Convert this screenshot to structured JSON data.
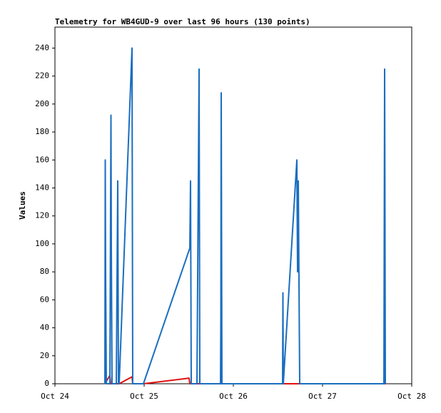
{
  "chart_data": {
    "type": "line",
    "title": "Telemetry for WB4GUD-9 over last 96 hours (130 points)",
    "y_label": "Values",
    "xlim": [
      24,
      28
    ],
    "xticks": [
      {
        "value": 24,
        "label": "Oct 24"
      },
      {
        "value": 25,
        "label": "Oct 25"
      },
      {
        "value": 26,
        "label": "Oct 26"
      },
      {
        "value": 27,
        "label": "Oct 27"
      },
      {
        "value": 28,
        "label": "Oct 28"
      }
    ],
    "ylim": [
      0,
      255
    ],
    "yticks": [
      0,
      20,
      40,
      60,
      80,
      100,
      120,
      140,
      160,
      180,
      200,
      220,
      240
    ],
    "series": [
      {
        "color": "#e01010",
        "x": [
          24.56,
          24.616,
          24.624,
          24.72,
          24.864,
          24.872,
          24.992,
          25.504,
          25.512,
          27.704
        ],
        "values": [
          0,
          6,
          0,
          0,
          5,
          0,
          0,
          4,
          0,
          0
        ]
      },
      {
        "color": "#1a6ec0",
        "x": [
          24.56,
          24.564,
          24.568,
          24.576,
          24.616,
          24.628,
          24.632,
          24.64,
          24.688,
          24.704,
          24.712,
          24.72,
          24.864,
          24.872,
          24.992,
          25.512,
          25.52,
          25.528,
          25.592,
          25.616,
          25.624,
          25.856,
          25.86,
          25.864,
          25.872,
          26.552,
          26.556,
          26.56,
          26.712,
          26.72,
          26.728,
          26.736,
          26.744,
          27.688,
          27.692,
          27.696,
          27.704
        ],
        "values": [
          0,
          160,
          80,
          0,
          0,
          192,
          97,
          0,
          0,
          145,
          0,
          0,
          240,
          0,
          0,
          97,
          145,
          0,
          0,
          225,
          0,
          0,
          48,
          208,
          0,
          0,
          65,
          0,
          160,
          80,
          145,
          72,
          0,
          0,
          112,
          225,
          0
        ]
      }
    ]
  }
}
